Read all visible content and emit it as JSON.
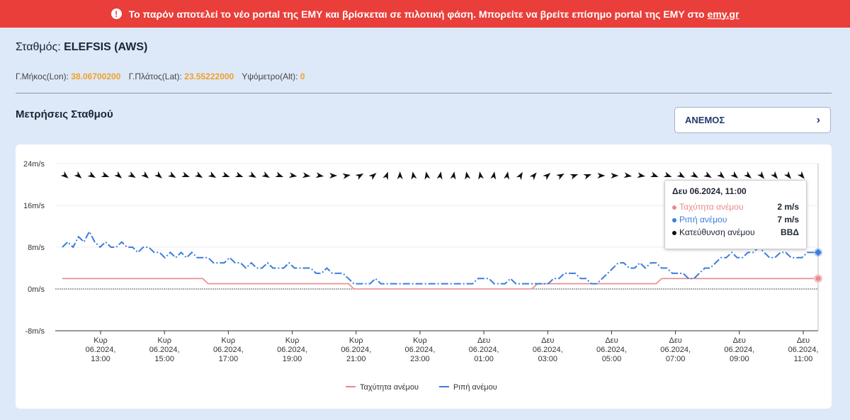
{
  "banner": {
    "text": "Το παρόν αποτελεί το νέο portal της ΕΜΥ και βρίσκεται σε πιλοτική φάση. Μπορείτε να βρείτε επίσημο portal της ΕΜΥ στο",
    "link": "emy.gr"
  },
  "station": {
    "label": "Σταθμός:",
    "name": "ELEFSIS (AWS)"
  },
  "coords": {
    "lon_label": "Γ.Μήκος(Lon):",
    "lon": "38.06700200",
    "lat_label": "Γ.Πλάτος(Lat):",
    "lat": "23.55222000",
    "alt_label": "Υψόμετρο(Alt):",
    "alt": "0"
  },
  "section_title": "Μετρήσεις Σταθμού",
  "dropdown": {
    "value": "ΑΝΕΜΟΣ"
  },
  "tooltip": {
    "title": "Δευ 06.2024, 11:00",
    "rows": [
      {
        "label": "Ταχύτητα ανέμου",
        "value": "2 m/s",
        "color": "#e8898b"
      },
      {
        "label": "Ριπή ανέμου",
        "value": "7 m/s",
        "color": "#3b7ddd"
      },
      {
        "label": "Κατεύθυνση ανέμου",
        "value": "ΒΒΔ",
        "color": "#111111"
      }
    ]
  },
  "chart_data": {
    "type": "line",
    "title": "",
    "xlabel": "",
    "ylabel": "",
    "ylim": [
      -8,
      24
    ],
    "y_ticks": [
      "24m/s",
      "16m/s",
      "8m/s",
      "0m/s",
      "-8m/s"
    ],
    "y_tick_values": [
      24,
      16,
      8,
      0,
      -8
    ],
    "x_ticks": [
      [
        "Κυρ",
        "06.2024,",
        "13:00"
      ],
      [
        "Κυρ",
        "06.2024,",
        "15:00"
      ],
      [
        "Κυρ",
        "06.2024,",
        "17:00"
      ],
      [
        "Κυρ",
        "06.2024,",
        "19:00"
      ],
      [
        "Κυρ",
        "06.2024,",
        "21:00"
      ],
      [
        "Κυρ",
        "06.2024,",
        "23:00"
      ],
      [
        "Δευ",
        "06.2024,",
        "01:00"
      ],
      [
        "Δευ",
        "06.2024,",
        "03:00"
      ],
      [
        "Δευ",
        "06.2024,",
        "05:00"
      ],
      [
        "Δευ",
        "06.2024,",
        "07:00"
      ],
      [
        "Δευ",
        "06.2024,",
        "09:00"
      ],
      [
        "Δευ",
        "06.2024,",
        "11:00"
      ]
    ],
    "series": [
      {
        "name": "Ταχύτητα ανέμου",
        "color": "#e8898b",
        "values": [
          2,
          2,
          2,
          2,
          2,
          2,
          2,
          2,
          2,
          2,
          2,
          2,
          2,
          2,
          2,
          2,
          2,
          2,
          2,
          2,
          2,
          2,
          2,
          2,
          2,
          2,
          2,
          1,
          1,
          1,
          1,
          1,
          1,
          1,
          1,
          1,
          1,
          1,
          1,
          1,
          1,
          1,
          1,
          1,
          1,
          1,
          1,
          1,
          1,
          1,
          1,
          1,
          1,
          1,
          0,
          0,
          0,
          0,
          0,
          0,
          0,
          0,
          0,
          0,
          0,
          0,
          0,
          0,
          0,
          0,
          0,
          0,
          0,
          0,
          0,
          0,
          0,
          0,
          0,
          0,
          0,
          0,
          0,
          0,
          0,
          0,
          0,
          0,
          1,
          1,
          1,
          1,
          1,
          1,
          1,
          1,
          1,
          1,
          1,
          1,
          1,
          1,
          1,
          1,
          1,
          1,
          1,
          1,
          1,
          1,
          1,
          2,
          2,
          2,
          2,
          2,
          2,
          2,
          2,
          2,
          2,
          2,
          2,
          2,
          2,
          2,
          2,
          2,
          2,
          2,
          2,
          2,
          2,
          2,
          2,
          2,
          2,
          2,
          2,
          2,
          2
        ]
      },
      {
        "name": "Ριπή ανέμου",
        "color": "#3b7ddd",
        "values": [
          8,
          9,
          8,
          10,
          9,
          11,
          9,
          8,
          9,
          8,
          8,
          9,
          8,
          8,
          7,
          8,
          8,
          7,
          7,
          6,
          7,
          6,
          7,
          6,
          7,
          6,
          6,
          6,
          5,
          5,
          5,
          6,
          5,
          5,
          4,
          5,
          4,
          4,
          5,
          4,
          4,
          4,
          5,
          4,
          4,
          4,
          4,
          3,
          3,
          4,
          3,
          3,
          3,
          2,
          1,
          1,
          1,
          1,
          2,
          1,
          1,
          1,
          1,
          1,
          1,
          1,
          1,
          1,
          1,
          1,
          1,
          1,
          1,
          1,
          1,
          1,
          1,
          2,
          2,
          2,
          1,
          1,
          1,
          2,
          1,
          1,
          1,
          1,
          1,
          1,
          1,
          2,
          2,
          3,
          3,
          3,
          2,
          2,
          1,
          1,
          2,
          3,
          4,
          5,
          5,
          4,
          4,
          5,
          4,
          5,
          5,
          4,
          4,
          3,
          3,
          3,
          2,
          2,
          3,
          4,
          4,
          5,
          6,
          6,
          7,
          6,
          6,
          7,
          7,
          8,
          7,
          6,
          6,
          7,
          7,
          6,
          6,
          6,
          7,
          7,
          7
        ]
      }
    ],
    "direction_arrows": [
      310,
      310,
      300,
      290,
      310,
      300,
      310,
      310,
      300,
      290,
      300,
      300,
      290,
      290,
      300,
      300,
      290,
      280,
      280,
      280,
      270,
      260,
      240,
      230,
      200,
      180,
      170,
      170,
      190,
      190,
      170,
      170,
      190,
      190,
      210,
      220,
      230,
      240,
      250,
      250,
      270,
      270,
      280,
      280,
      290,
      290,
      300,
      300,
      300,
      310,
      310,
      310,
      320,
      320,
      320,
      320
    ],
    "legend": [
      "Ταχύτητα ανέμου",
      "Ριπή ανέμου"
    ],
    "legend_position": "bottom-center"
  }
}
